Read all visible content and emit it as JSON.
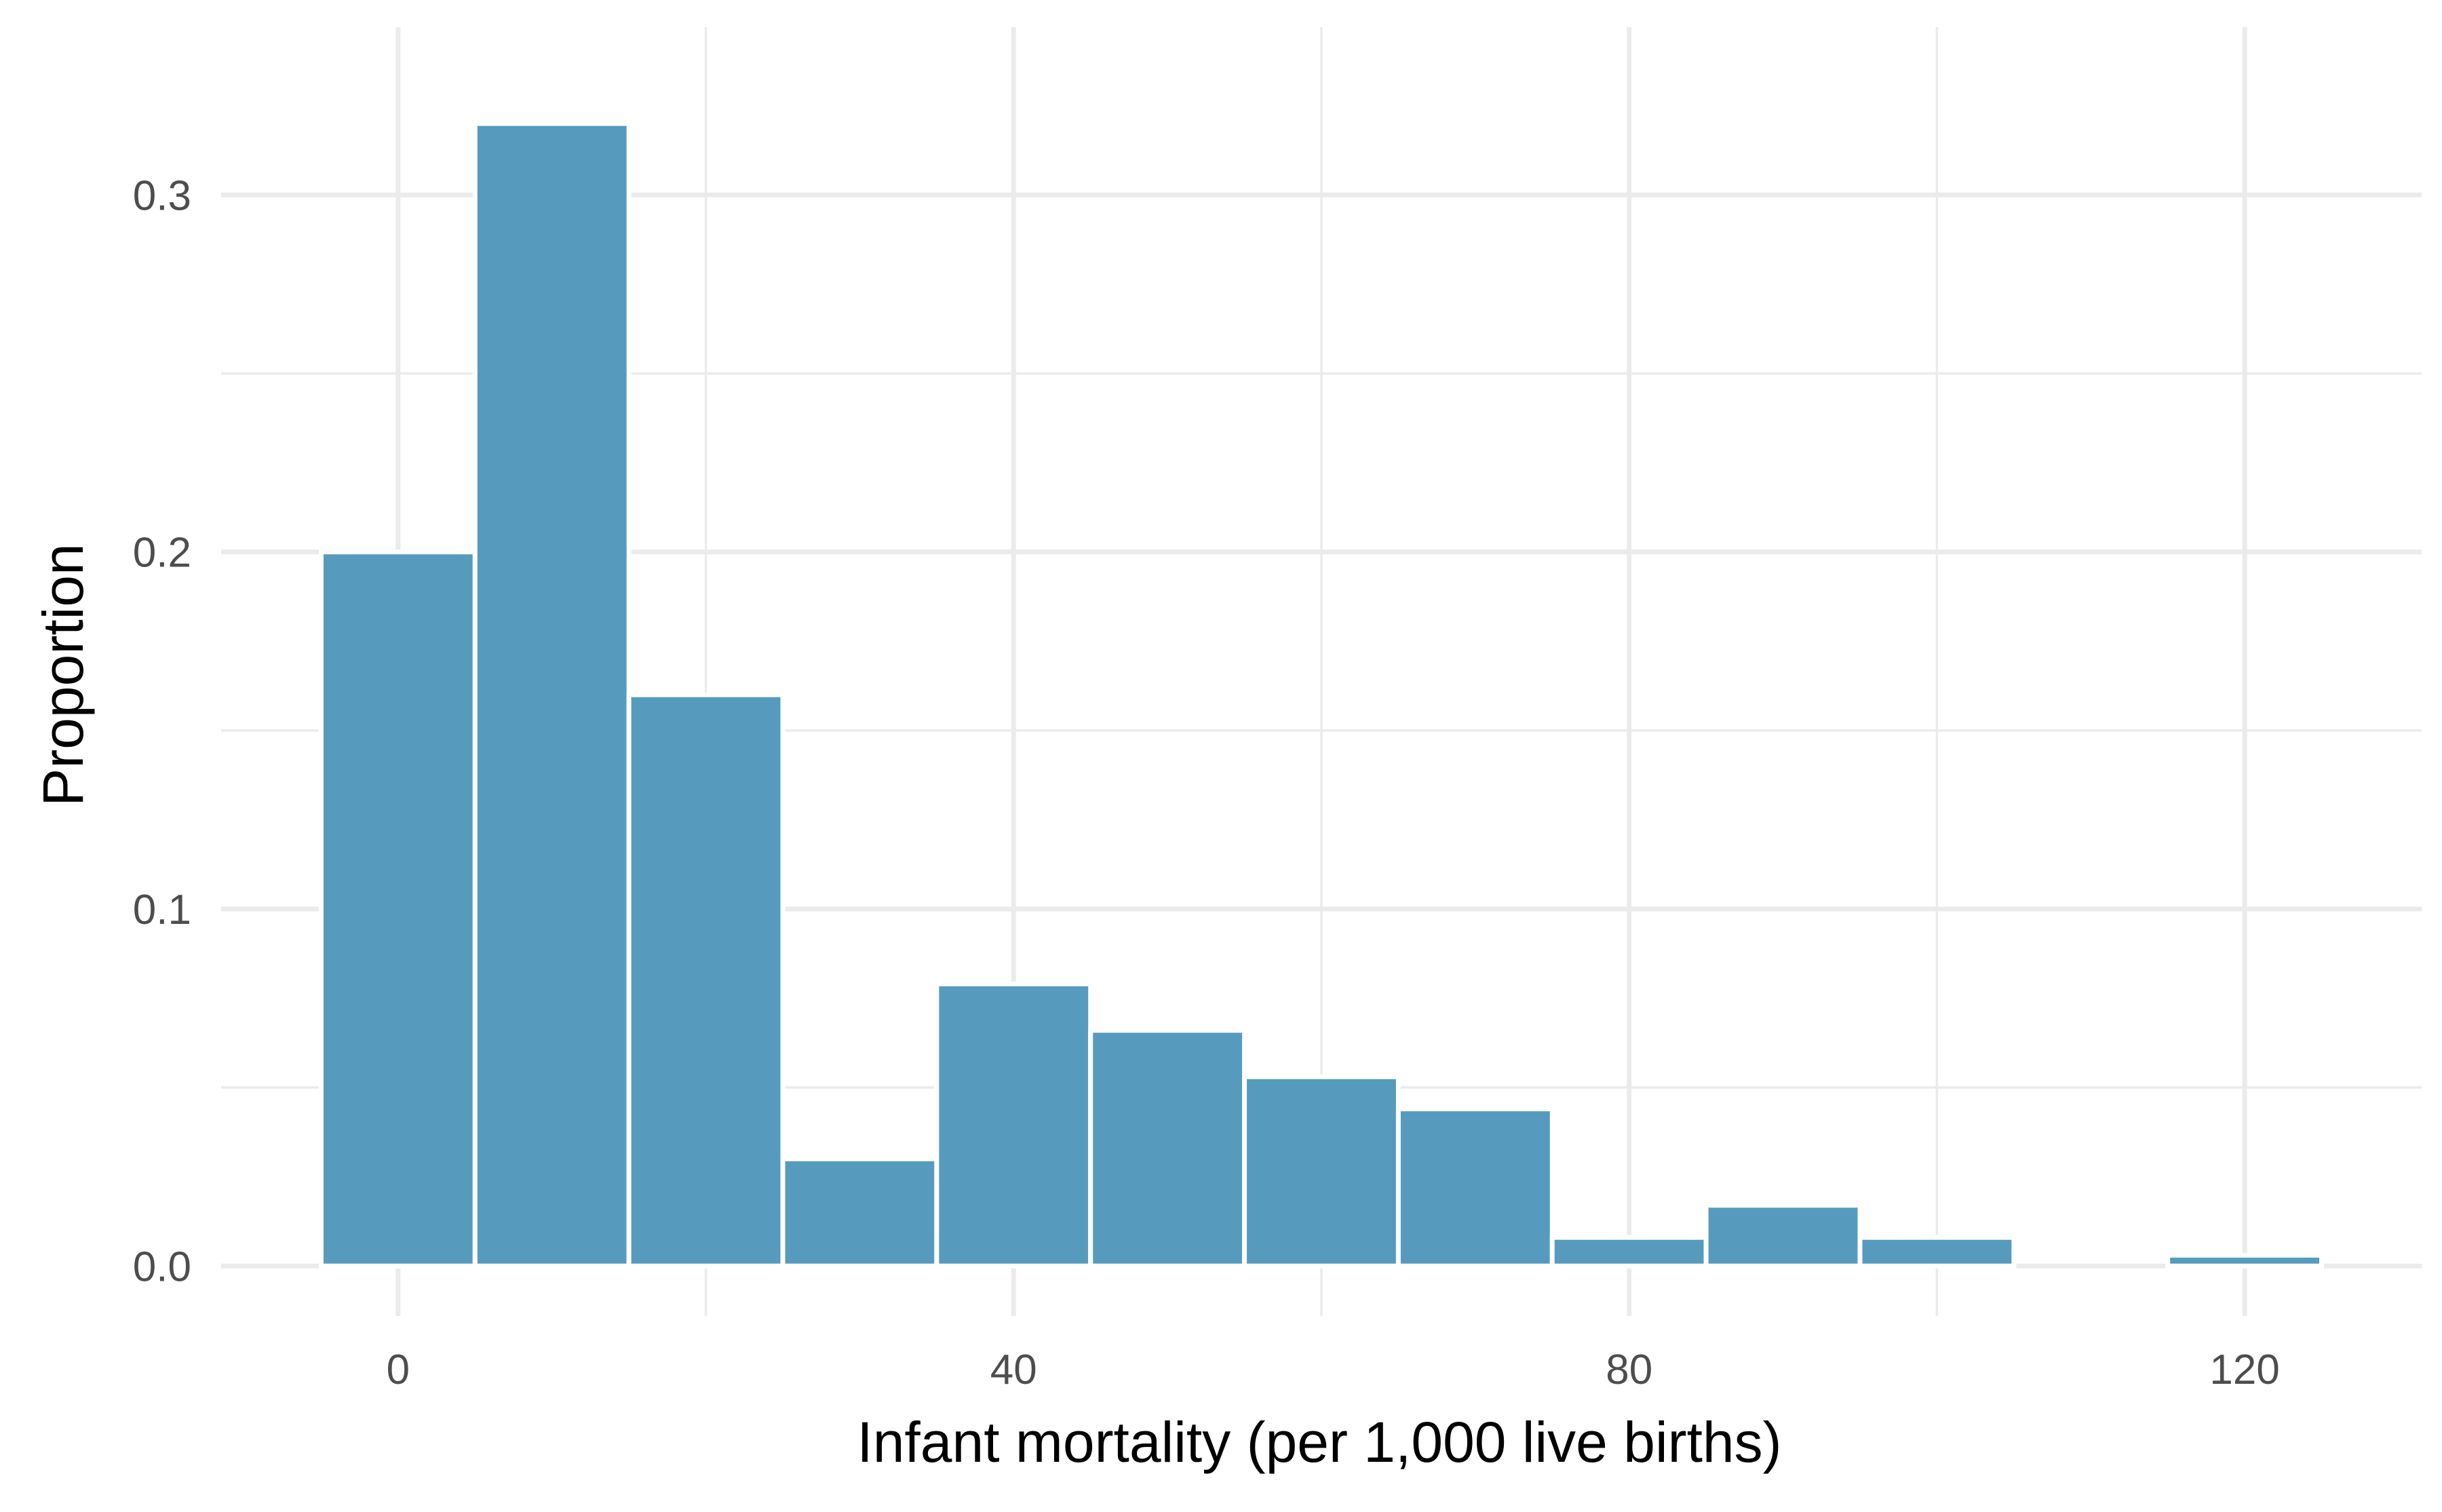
{
  "chart_data": {
    "type": "histogram",
    "xlabel": "Infant mortality (per 1,000 live births)",
    "ylabel": "Proportion",
    "bin_width": 10,
    "bins": [
      {
        "start": -5,
        "end": 5,
        "value": 0.2
      },
      {
        "start": 5,
        "end": 15,
        "value": 0.32
      },
      {
        "start": 15,
        "end": 25,
        "value": 0.16
      },
      {
        "start": 25,
        "end": 35,
        "value": 0.03
      },
      {
        "start": 35,
        "end": 45,
        "value": 0.079
      },
      {
        "start": 45,
        "end": 55,
        "value": 0.066
      },
      {
        "start": 55,
        "end": 65,
        "value": 0.053
      },
      {
        "start": 65,
        "end": 75,
        "value": 0.044
      },
      {
        "start": 75,
        "end": 85,
        "value": 0.008
      },
      {
        "start": 85,
        "end": 95,
        "value": 0.017
      },
      {
        "start": 95,
        "end": 105,
        "value": 0.008
      },
      {
        "start": 105,
        "end": 115,
        "value": 0
      },
      {
        "start": 115,
        "end": 125,
        "value": 0.003
      }
    ],
    "xlim": [
      -11.5,
      131.5
    ],
    "ylim": [
      -0.014,
      0.347
    ],
    "x_major_ticks": [
      0,
      40,
      80,
      120
    ],
    "x_tick_labels": [
      "0",
      "40",
      "80",
      "120"
    ],
    "x_minor_ticks": [
      20,
      60,
      100
    ],
    "y_major_ticks": [
      0,
      0.1,
      0.2,
      0.3
    ],
    "y_tick_labels": [
      "0.0",
      "0.1",
      "0.2",
      "0.3"
    ],
    "y_minor_ticks": [
      0.05,
      0.15,
      0.25
    ],
    "grid": true,
    "colors": {
      "bar_fill": "#569BBD",
      "bar_outline": "#FFFFFF",
      "grid": "#EBEBEB",
      "tick_text": "#4D4D4D",
      "title_text": "#000000"
    }
  }
}
